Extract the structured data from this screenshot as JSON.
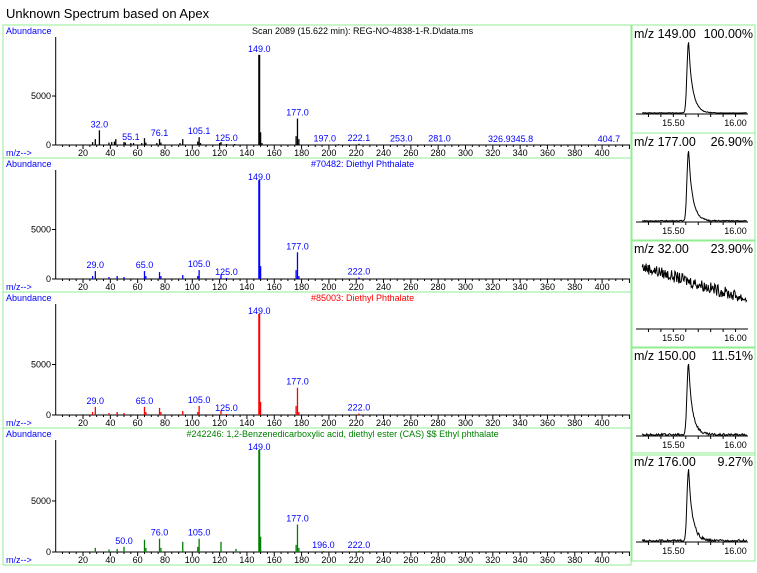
{
  "title": "Unknown Spectrum based on Apex",
  "axis_labels": {
    "y": "Abundance",
    "x": "m/z-->"
  },
  "colors": {
    "frame": "#90ee90",
    "label": "#0000ff",
    "panel_colors": [
      "#000000",
      "#0000ff",
      "#ff0000",
      "#008000"
    ]
  },
  "chart_data": [
    {
      "type": "bar",
      "title": "Scan 2089 (15.622 min): REG-NO-4838-1-R.D\\data.ms",
      "title_color": "#000000",
      "xlim": [
        0,
        420
      ],
      "ylim": [
        0,
        9800
      ],
      "yticks": [
        0,
        5000
      ],
      "xticks": [
        20,
        40,
        60,
        80,
        100,
        120,
        140,
        160,
        180,
        200,
        220,
        240,
        260,
        280,
        300,
        320,
        340,
        360,
        380,
        400
      ],
      "peaks": [
        [
          27,
          300
        ],
        [
          29,
          600
        ],
        [
          32,
          1500
        ],
        [
          39,
          250
        ],
        [
          41,
          300
        ],
        [
          43,
          350
        ],
        [
          44,
          600
        ],
        [
          50,
          300
        ],
        [
          51,
          250
        ],
        [
          55,
          200
        ],
        [
          57,
          200
        ],
        [
          63,
          200
        ],
        [
          65,
          700
        ],
        [
          66,
          250
        ],
        [
          74,
          200
        ],
        [
          76,
          600
        ],
        [
          77,
          250
        ],
        [
          91,
          200
        ],
        [
          93,
          600
        ],
        [
          104,
          350
        ],
        [
          105,
          800
        ],
        [
          106,
          200
        ],
        [
          120,
          200
        ],
        [
          121,
          300
        ],
        [
          125,
          100
        ],
        [
          131,
          100
        ],
        [
          149,
          9200
        ],
        [
          150,
          1300
        ],
        [
          151,
          200
        ],
        [
          176,
          900
        ],
        [
          177,
          2700
        ],
        [
          178,
          600
        ],
        [
          197,
          50
        ],
        [
          207,
          80
        ],
        [
          222,
          120
        ],
        [
          253,
          60
        ],
        [
          281,
          30
        ],
        [
          327,
          30
        ],
        [
          346,
          20
        ],
        [
          405,
          20
        ]
      ],
      "labels": [
        [
          32,
          "32.0"
        ],
        [
          55,
          "55.1"
        ],
        [
          76,
          "76.1"
        ],
        [
          105,
          "105.1"
        ],
        [
          125,
          "125.0"
        ],
        [
          149,
          "149.0"
        ],
        [
          177,
          "177.0"
        ],
        [
          197,
          "197.0"
        ],
        [
          222,
          "222.1"
        ],
        [
          253,
          "253.0"
        ],
        [
          281,
          "281.0"
        ],
        [
          333,
          "326.9345.8"
        ],
        [
          405,
          "404.7"
        ]
      ]
    },
    {
      "type": "bar",
      "title": "#70482: Diethyl Phthalate",
      "title_color": "#0000ff",
      "xlim": [
        0,
        420
      ],
      "ylim": [
        0,
        9800
      ],
      "yticks": [
        0,
        5000
      ],
      "xticks": [
        20,
        40,
        60,
        80,
        100,
        120,
        140,
        160,
        180,
        200,
        220,
        240,
        260,
        280,
        300,
        320,
        340,
        360,
        380,
        400
      ],
      "peaks": [
        [
          27,
          300
        ],
        [
          29,
          800
        ],
        [
          39,
          200
        ],
        [
          45,
          300
        ],
        [
          50,
          200
        ],
        [
          65,
          800
        ],
        [
          66,
          300
        ],
        [
          76,
          700
        ],
        [
          77,
          300
        ],
        [
          93,
          400
        ],
        [
          104,
          300
        ],
        [
          105,
          900
        ],
        [
          121,
          400
        ],
        [
          125,
          100
        ],
        [
          149,
          9999
        ],
        [
          150,
          1300
        ],
        [
          176,
          900
        ],
        [
          177,
          2700
        ],
        [
          178,
          300
        ],
        [
          222,
          150
        ]
      ],
      "labels": [
        [
          29,
          "29.0"
        ],
        [
          65,
          "65.0"
        ],
        [
          105,
          "105.0"
        ],
        [
          125,
          "125.0"
        ],
        [
          149,
          "149.0"
        ],
        [
          177,
          "177.0"
        ],
        [
          222,
          "222.0"
        ]
      ]
    },
    {
      "type": "bar",
      "title": "#85003: Diethyl Phthalate",
      "title_color": "#ff0000",
      "xlim": [
        0,
        420
      ],
      "ylim": [
        0,
        9800
      ],
      "yticks": [
        0,
        5000
      ],
      "xticks": [
        20,
        40,
        60,
        80,
        100,
        120,
        140,
        160,
        180,
        200,
        220,
        240,
        260,
        280,
        300,
        320,
        340,
        360,
        380,
        400
      ],
      "peaks": [
        [
          27,
          300
        ],
        [
          29,
          800
        ],
        [
          39,
          200
        ],
        [
          45,
          300
        ],
        [
          50,
          200
        ],
        [
          65,
          800
        ],
        [
          66,
          300
        ],
        [
          76,
          700
        ],
        [
          77,
          300
        ],
        [
          93,
          400
        ],
        [
          104,
          300
        ],
        [
          105,
          900
        ],
        [
          121,
          400
        ],
        [
          125,
          100
        ],
        [
          149,
          9999
        ],
        [
          150,
          1300
        ],
        [
          176,
          900
        ],
        [
          177,
          2700
        ],
        [
          178,
          300
        ],
        [
          222,
          150
        ]
      ],
      "labels": [
        [
          29,
          "29.0"
        ],
        [
          65,
          "65.0"
        ],
        [
          105,
          "105.0"
        ],
        [
          125,
          "125.0"
        ],
        [
          149,
          "149.0"
        ],
        [
          177,
          "177.0"
        ],
        [
          222,
          "222.0"
        ]
      ]
    },
    {
      "type": "bar",
      "title": "#242246: 1,2-Benzenedicarboxylic acid, diethyl ester (CAS) $$ Ethyl phthalate",
      "title_color": "#008000",
      "xlim": [
        0,
        420
      ],
      "ylim": [
        0,
        9800
      ],
      "yticks": [
        0,
        5000
      ],
      "xticks": [
        20,
        40,
        60,
        80,
        100,
        120,
        140,
        160,
        180,
        200,
        220,
        240,
        260,
        280,
        300,
        320,
        340,
        360,
        380,
        400
      ],
      "peaks": [
        [
          29,
          400
        ],
        [
          39,
          250
        ],
        [
          45,
          300
        ],
        [
          50,
          500
        ],
        [
          65,
          1200
        ],
        [
          66,
          400
        ],
        [
          76,
          1300
        ],
        [
          77,
          400
        ],
        [
          93,
          1000
        ],
        [
          104,
          500
        ],
        [
          105,
          1300
        ],
        [
          121,
          1000
        ],
        [
          132,
          300
        ],
        [
          149,
          9999
        ],
        [
          150,
          1500
        ],
        [
          176,
          700
        ],
        [
          177,
          2700
        ],
        [
          178,
          400
        ],
        [
          196,
          100
        ],
        [
          222,
          120
        ]
      ],
      "labels": [
        [
          50,
          "50.0"
        ],
        [
          76,
          "76.0"
        ],
        [
          105,
          "105.0"
        ],
        [
          149,
          "149.0"
        ],
        [
          177,
          "177.0"
        ],
        [
          196,
          "196.0"
        ],
        [
          222,
          "222.0"
        ]
      ]
    },
    {
      "type": "line",
      "title": "m/z 149.00",
      "percent": "100.00%",
      "xticks": [
        "15.50",
        "16.00"
      ],
      "xlim": [
        15.2,
        16.1
      ],
      "apex": 15.622,
      "shape": "peak",
      "noise": 0.01
    },
    {
      "type": "line",
      "title": "m/z 177.00",
      "percent": "26.90%",
      "xticks": [
        "15.50",
        "16.00"
      ],
      "xlim": [
        15.2,
        16.1
      ],
      "apex": 15.622,
      "shape": "peak",
      "noise": 0.02
    },
    {
      "type": "line",
      "title": "m/z 32.00",
      "percent": "23.90%",
      "xticks": [
        "15.50",
        "16.00"
      ],
      "xlim": [
        15.2,
        16.1
      ],
      "apex": 15.622,
      "shape": "noise",
      "noise": 0.08
    },
    {
      "type": "line",
      "title": "m/z 150.00",
      "percent": "11.51%",
      "xticks": [
        "15.50",
        "16.00"
      ],
      "xlim": [
        15.2,
        16.1
      ],
      "apex": 15.622,
      "shape": "peak",
      "noise": 0.04
    },
    {
      "type": "line",
      "title": "m/z 176.00",
      "percent": "9.27%",
      "xticks": [
        "15.50",
        "16.00"
      ],
      "xlim": [
        15.2,
        16.1
      ],
      "apex": 15.622,
      "shape": "peak",
      "noise": 0.04
    }
  ]
}
